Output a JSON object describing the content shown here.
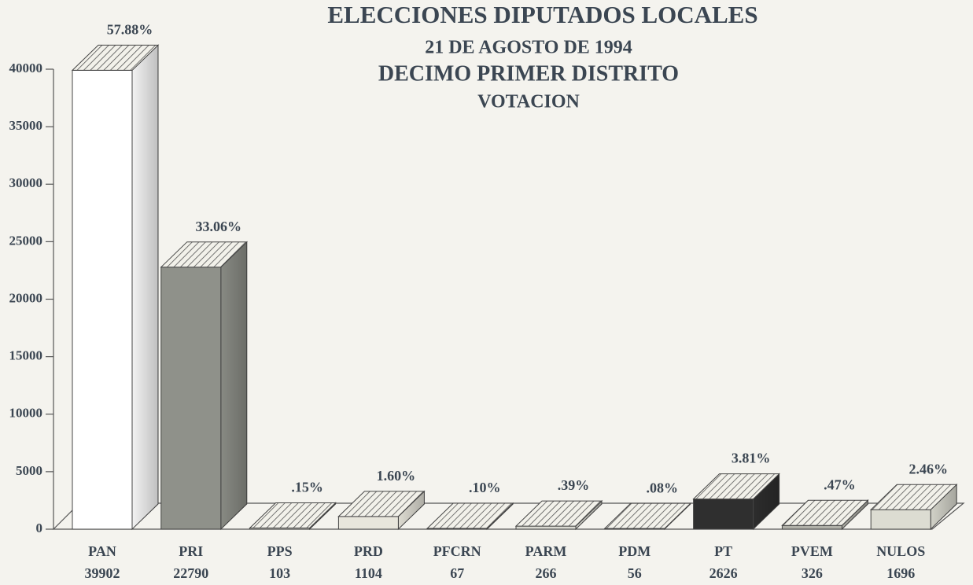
{
  "chart_data": {
    "type": "bar3d",
    "title": "ELECCIONES DIPUTADOS LOCALES",
    "subtitle": [
      "21 DE AGOSTO DE 1994",
      "DECIMO PRIMER DISTRITO",
      "VOTACION"
    ],
    "categories": [
      "PAN",
      "PRI",
      "PPS",
      "PRD",
      "PFCRN",
      "PARM",
      "PDM",
      "PT",
      "PVEM",
      "NULOS"
    ],
    "values": [
      39902,
      22790,
      103,
      1104,
      67,
      266,
      56,
      2626,
      326,
      1696
    ],
    "percent_labels": [
      "57.88%",
      "33.06%",
      ".15%",
      "1.60%",
      ".10%",
      ".39%",
      ".08%",
      "3.81%",
      ".47%",
      "2.46%"
    ],
    "colors": [
      "#ffffff",
      "#8f918a",
      "#d8d8d0",
      "#e8e6dc",
      "#d8d8d0",
      "#d8d8d0",
      "#d8d8d0",
      "#2f2f2f",
      "#b0b0a8",
      "#dcdcd2"
    ],
    "ylim": [
      0,
      40000
    ],
    "yticks": [
      0,
      5000,
      10000,
      15000,
      20000,
      25000,
      30000,
      35000,
      40000
    ]
  }
}
